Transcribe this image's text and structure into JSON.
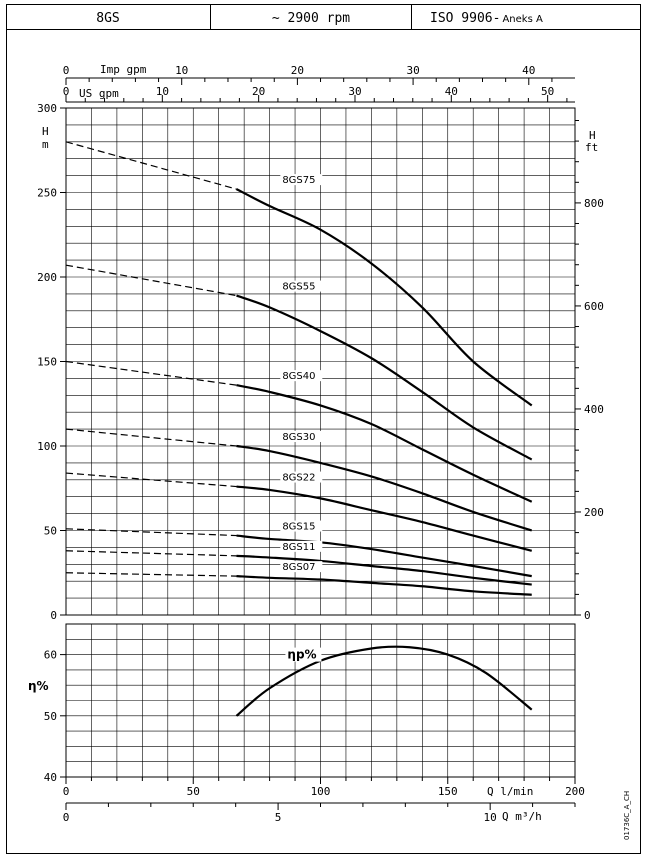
{
  "header": {
    "model": "8GS",
    "speed": "~ 2900 rpm",
    "standard": "ISO 9906-",
    "standard_suffix": "Aneks A"
  },
  "doc_code": "01736C_A_CH",
  "top_axes": {
    "imp_label": "Imp gpm",
    "imp_ticks": [
      "0",
      "10",
      "20",
      "30",
      "40"
    ],
    "us_label": "US gpm",
    "us_ticks": [
      "0",
      "10",
      "20",
      "30",
      "40",
      "50"
    ]
  },
  "bottom_axes": {
    "q_label": "Q l/min",
    "q_ticks": [
      "0",
      "50",
      "100",
      "150",
      "200"
    ],
    "m3_label": "Q m³/h",
    "m3_ticks": [
      "0",
      "5",
      "10"
    ]
  },
  "head_axis": {
    "label_top": "H",
    "label_bottom": "m",
    "ticks": [
      "0",
      "50",
      "100",
      "150",
      "200",
      "250",
      "300"
    ],
    "ylim": [
      0,
      300
    ]
  },
  "feet_axis": {
    "label_top": "H",
    "label_bottom": "ft",
    "ticks": [
      "0",
      "200",
      "400",
      "600",
      "800"
    ]
  },
  "eff_axis": {
    "label": "η%",
    "ticks": [
      "40",
      "50",
      "60"
    ],
    "ylim": [
      40,
      65
    ]
  },
  "chart_data": [
    {
      "type": "line",
      "xlim": [
        0,
        200
      ],
      "ylim": [
        0,
        300
      ],
      "x": [
        0,
        67,
        80,
        100,
        120,
        140,
        160,
        183
      ],
      "dashed_until": 67,
      "series": [
        {
          "name": "8GS75",
          "values": [
            280,
            252,
            242,
            228,
            208,
            182,
            150,
            124
          ]
        },
        {
          "name": "8GS55",
          "values": [
            207,
            189,
            182,
            168,
            152,
            132,
            111,
            92
          ]
        },
        {
          "name": "8GS40",
          "values": [
            150,
            136,
            132,
            124,
            113,
            98,
            83,
            67
          ]
        },
        {
          "name": "8GS30",
          "values": [
            110,
            100,
            97,
            90,
            82,
            72,
            61,
            50
          ]
        },
        {
          "name": "8GS22",
          "values": [
            84,
            76,
            74,
            69,
            62,
            55,
            47,
            38
          ]
        },
        {
          "name": "8GS15",
          "values": [
            51,
            47,
            45,
            43,
            39,
            34,
            29,
            23
          ]
        },
        {
          "name": "8GS11",
          "values": [
            38,
            35,
            34,
            32,
            29,
            26,
            22,
            18
          ]
        },
        {
          "name": "8GS07",
          "values": [
            25,
            23,
            22,
            21,
            19,
            17,
            14,
            12
          ]
        }
      ]
    },
    {
      "type": "line",
      "xlim": [
        0,
        200
      ],
      "ylim": [
        40,
        65
      ],
      "x": [
        67,
        80,
        100,
        120,
        135,
        150,
        165,
        183
      ],
      "series": [
        {
          "name": "ηp%",
          "values": [
            50,
            54.5,
            59,
            61,
            61.2,
            60,
            57,
            51
          ]
        }
      ]
    }
  ]
}
